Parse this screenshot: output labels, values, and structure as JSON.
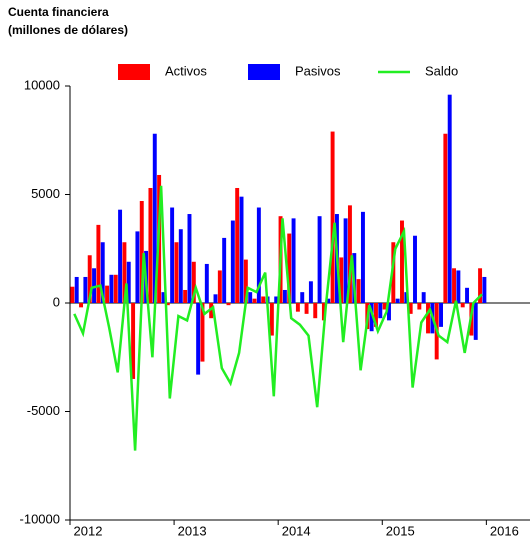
{
  "chart_data": {
    "type": "bar_line",
    "title": [
      "Cuenta financiera",
      "(millones de dólares)"
    ],
    "categories": [
      null,
      null,
      null,
      null,
      null,
      null,
      null,
      null,
      null,
      null,
      null,
      null,
      null,
      null,
      null,
      null,
      null,
      null,
      null,
      null,
      null,
      null,
      null,
      null,
      null,
      null,
      null,
      null,
      null,
      null,
      null,
      null,
      null,
      null,
      null,
      null,
      null,
      null,
      null,
      null,
      null,
      null,
      null,
      null,
      null,
      null,
      null,
      null
    ],
    "series": [
      {
        "name": "Activos",
        "color": "#ff0000",
        "kind": "bar",
        "values": [
          750,
          -200,
          2200,
          3600,
          800,
          1300,
          2800,
          -3500,
          4700,
          5300,
          5900,
          -100,
          2800,
          600,
          1900,
          -2700,
          -700,
          1500,
          -100,
          5300,
          2000,
          200,
          300,
          -1500,
          4000,
          3200,
          -400,
          -500,
          -700,
          -800,
          7900,
          2100,
          4500,
          1100,
          -1200,
          -1100,
          -300,
          2800,
          3800,
          -500,
          -300,
          -1400,
          -2600,
          7800,
          1600,
          -200,
          -1500,
          1600
        ]
      },
      {
        "name": "Pasivos",
        "color": "#0000ff",
        "kind": "bar",
        "values": [
          1200,
          1200,
          1600,
          2800,
          1300,
          4300,
          1900,
          3300,
          2400,
          7800,
          500,
          4400,
          3400,
          4100,
          -3300,
          1800,
          400,
          3000,
          3800,
          4900,
          500,
          4400,
          300,
          300,
          600,
          3900,
          500,
          1000,
          4000,
          200,
          4100,
          3900,
          2300,
          4200,
          -1300,
          -700,
          -800,
          200,
          500,
          3100,
          500,
          -1400,
          -1100,
          9600,
          1500,
          700,
          -1700,
          1200
        ]
      },
      {
        "name": "Saldo",
        "color": "#22ee22",
        "kind": "line",
        "values": [
          -500,
          -1400,
          700,
          800,
          -1100,
          -3200,
          900,
          -6800,
          2300,
          -2500,
          5400,
          -4400,
          -600,
          -800,
          700,
          -500,
          -200,
          -3000,
          -3700,
          -2300,
          700,
          500,
          1400,
          -4300,
          3900,
          -700,
          -1000,
          -1500,
          -4800,
          -100,
          3700,
          -1800,
          2200,
          -3100,
          -100,
          -1300,
          -400,
          2500,
          3300,
          -3900,
          -900,
          -300,
          -1500,
          -1800,
          100,
          -2300,
          0,
          400
        ]
      }
    ],
    "ylim": [
      -10000,
      10000
    ],
    "yticks": [
      -10000,
      -5000,
      0,
      5000,
      10000
    ],
    "xlim": [
      2012,
      2016.4
    ],
    "xticks": [
      2012,
      2013,
      2014,
      2015,
      2016
    ],
    "grid": false
  }
}
